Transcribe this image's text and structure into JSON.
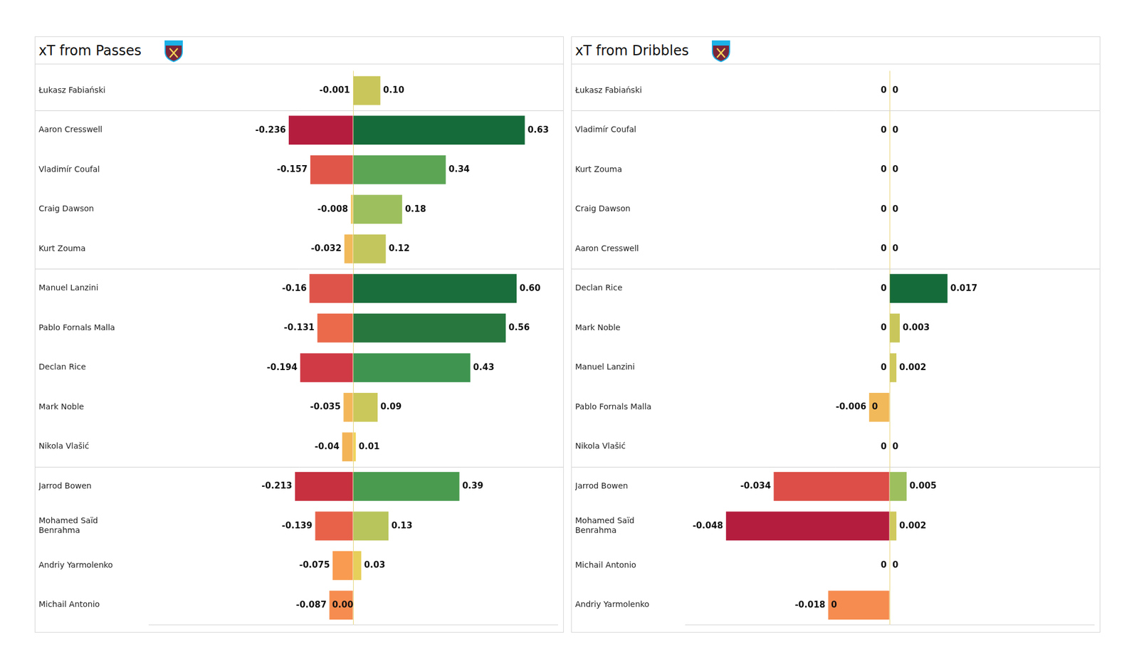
{
  "chart_data": [
    {
      "type": "bar",
      "title": "xT from Passes",
      "orientation": "horizontal",
      "stacked": true,
      "data_labels": true,
      "tick_labels": "y",
      "grid": true,
      "xlim": [
        -0.75,
        0.75
      ],
      "xticks": [
        0
      ],
      "categories": [
        "Łukasz Fabiański",
        "Aaron Cresswell",
        "Vladimír Coufal",
        "Craig Dawson",
        "Kurt Zouma",
        "Manuel Lanzini",
        "Pablo Fornals Malla",
        "Declan Rice",
        "Mark Noble",
        "Nikola Vlašić",
        "Jarrod Bowen",
        "Mohamed Saïd Benrahma",
        "Andriy Yarmolenko",
        "Michail Antonio"
      ],
      "series": [
        {
          "values": [
            -0.001,
            -0.236,
            -0.157,
            -0.008,
            -0.032,
            -0.16,
            -0.131,
            -0.194,
            -0.035,
            -0.04,
            -0.213,
            -0.139,
            -0.075,
            -0.087
          ],
          "value_labels": [
            "-0.001",
            "-0.236",
            "-0.157",
            "-0.008",
            "-0.032",
            "-0.16",
            "-0.131",
            "-0.194",
            "-0.035",
            "-0.04",
            "-0.213",
            "-0.139",
            "-0.075",
            "-0.087"
          ],
          "colors": [
            "#f3d360",
            "#b51d3e",
            "#e0574a",
            "#f2c55f",
            "#f2b95a",
            "#de544a",
            "#ea6a4b",
            "#cf3a45",
            "#f3b75a",
            "#f3b458",
            "#c6303f",
            "#e8624a",
            "#f99b50",
            "#f68c4f"
          ]
        },
        {
          "values": [
            0.1,
            0.63,
            0.34,
            0.18,
            0.12,
            0.6,
            0.56,
            0.43,
            0.09,
            0.01,
            0.39,
            0.13,
            0.03,
            0
          ],
          "value_labels": [
            "0.10",
            "0.63",
            "0.34",
            "0.18",
            "0.12",
            "0.60",
            "0.56",
            "0.43",
            "0.09",
            "0.01",
            "0.39",
            "0.13",
            "0.03",
            "0.00"
          ],
          "colors": [
            "#c9c75b",
            "#166b3a",
            "#5ba555",
            "#9dbf5e",
            "#c3c65c",
            "#1a6e3b",
            "#27773f",
            "#3f9550",
            "#cbc85b",
            "#efd35b",
            "#4a9b4f",
            "#b8c55c",
            "#e6cf5a",
            "#f4d45e"
          ]
        }
      ]
    },
    {
      "type": "bar",
      "title": "xT from Dribbles",
      "orientation": "horizontal",
      "stacked": true,
      "data_labels": true,
      "tick_labels": "y",
      "grid": true,
      "xlim": [
        -0.06,
        0.06
      ],
      "xticks": [
        0
      ],
      "categories": [
        "Łukasz Fabiański",
        "Vladimír Coufal",
        "Kurt Zouma",
        "Craig Dawson",
        "Aaron Cresswell",
        "Declan Rice",
        "Mark Noble",
        "Manuel Lanzini",
        "Pablo Fornals Malla",
        "Nikola Vlašić",
        "Jarrod Bowen",
        "Mohamed Saïd Benrahma",
        "Michail Antonio",
        "Andriy Yarmolenko"
      ],
      "series": [
        {
          "values": [
            0,
            0,
            0,
            0,
            0,
            0,
            0,
            0,
            -0.006,
            0,
            -0.034,
            -0.048,
            0,
            -0.018
          ],
          "value_labels": [
            "0",
            "0",
            "0",
            "0",
            "0",
            "0",
            "0",
            "0",
            "-0.006",
            "0",
            "-0.034",
            "-0.048",
            "0",
            "-0.018"
          ],
          "colors": [
            "#f4d45e",
            "#f4d45e",
            "#f4d45e",
            "#f4d45e",
            "#f4d45e",
            "#f4d45e",
            "#f4d45e",
            "#f4d45e",
            "#f2b95a",
            "#f4d45e",
            "#dc4e47",
            "#b51d3e",
            "#f4d45e",
            "#f68c4f"
          ]
        },
        {
          "values": [
            0,
            0,
            0,
            0,
            0,
            0.017,
            0.003,
            0.002,
            0,
            0,
            0.005,
            0.002,
            0,
            0
          ],
          "value_labels": [
            "0",
            "0",
            "0",
            "0",
            "0",
            "0.017",
            "0.003",
            "0.002",
            "0",
            "0",
            "0.005",
            "0.002",
            "0",
            "0"
          ],
          "colors": [
            "#f4d45e",
            "#f4d45e",
            "#f4d45e",
            "#f4d45e",
            "#f4d45e",
            "#166b3a",
            "#c9c75b",
            "#cfc95e",
            "#f4d45e",
            "#f4d45e",
            "#9dbf5e",
            "#cfc95e",
            "#f4d45e",
            "#f4d45e"
          ]
        }
      ]
    }
  ]
}
